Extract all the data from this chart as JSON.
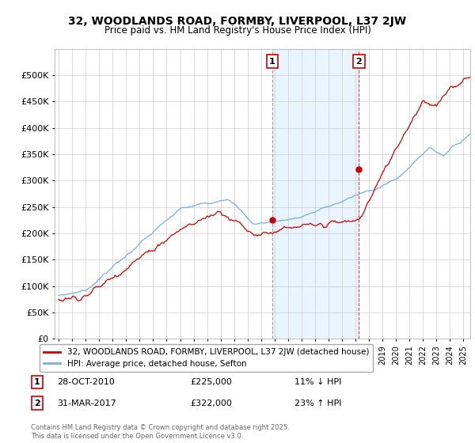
{
  "title": "32, WOODLANDS ROAD, FORMBY, LIVERPOOL, L37 2JW",
  "subtitle": "Price paid vs. HM Land Registry's House Price Index (HPI)",
  "background_color": "#ffffff",
  "plot_bg_color": "#ffffff",
  "grid_color": "#cccccc",
  "red_line_color": "#cc0000",
  "blue_line_color": "#7bafd4",
  "shade_color": "#ddeeff",
  "legend_label_red": "32, WOODLANDS ROAD, FORMBY, LIVERPOOL, L37 2JW (detached house)",
  "legend_label_blue": "HPI: Average price, detached house, Sefton",
  "annotation1_date": "28-OCT-2010",
  "annotation1_price": "£225,000",
  "annotation1_hpi": "11% ↓ HPI",
  "annotation2_date": "31-MAR-2017",
  "annotation2_price": "£322,000",
  "annotation2_hpi": "23% ↑ HPI",
  "footer": "Contains HM Land Registry data © Crown copyright and database right 2025.\nThis data is licensed under the Open Government Licence v3.0.",
  "ylim": [
    0,
    550000
  ],
  "yticks": [
    0,
    50000,
    100000,
    150000,
    200000,
    250000,
    300000,
    350000,
    400000,
    450000,
    500000
  ],
  "xmin": 1995.0,
  "xmax": 2025.5,
  "sale1_x": 2010.83,
  "sale1_y": 225000,
  "sale2_x": 2017.25,
  "sale2_y": 322000
}
